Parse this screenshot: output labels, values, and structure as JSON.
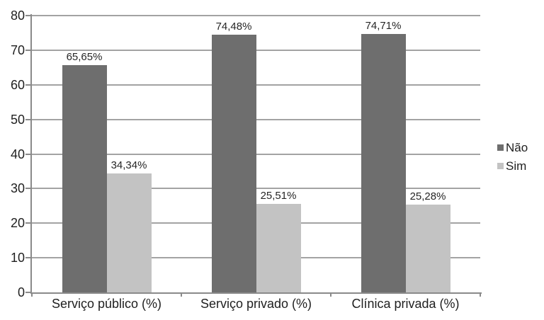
{
  "chart_data": {
    "type": "bar",
    "title": "",
    "xlabel": "",
    "ylabel": "",
    "categories": [
      "Serviço público (%)",
      "Serviço privado (%)",
      "Clínica privada (%)"
    ],
    "series": [
      {
        "name": "Não",
        "color": "#6e6e6e",
        "values": [
          65.65,
          74.48,
          74.71
        ],
        "labels": [
          "65,65%",
          "74,48%",
          "74,71%"
        ]
      },
      {
        "name": "Sim",
        "color": "#c3c3c3",
        "values": [
          34.34,
          25.51,
          25.28
        ],
        "labels": [
          "34,34%",
          "25,51%",
          "25,28%"
        ]
      }
    ],
    "ylim": [
      0,
      80
    ],
    "yticks": [
      0,
      10,
      20,
      30,
      40,
      50,
      60,
      70,
      80
    ],
    "grid": true,
    "legend_position": "right"
  },
  "colors": {
    "gridline": "#a3a3a3",
    "axis": "#8a8a8a",
    "text": "#1f1f1f",
    "background": "#ffffff"
  }
}
